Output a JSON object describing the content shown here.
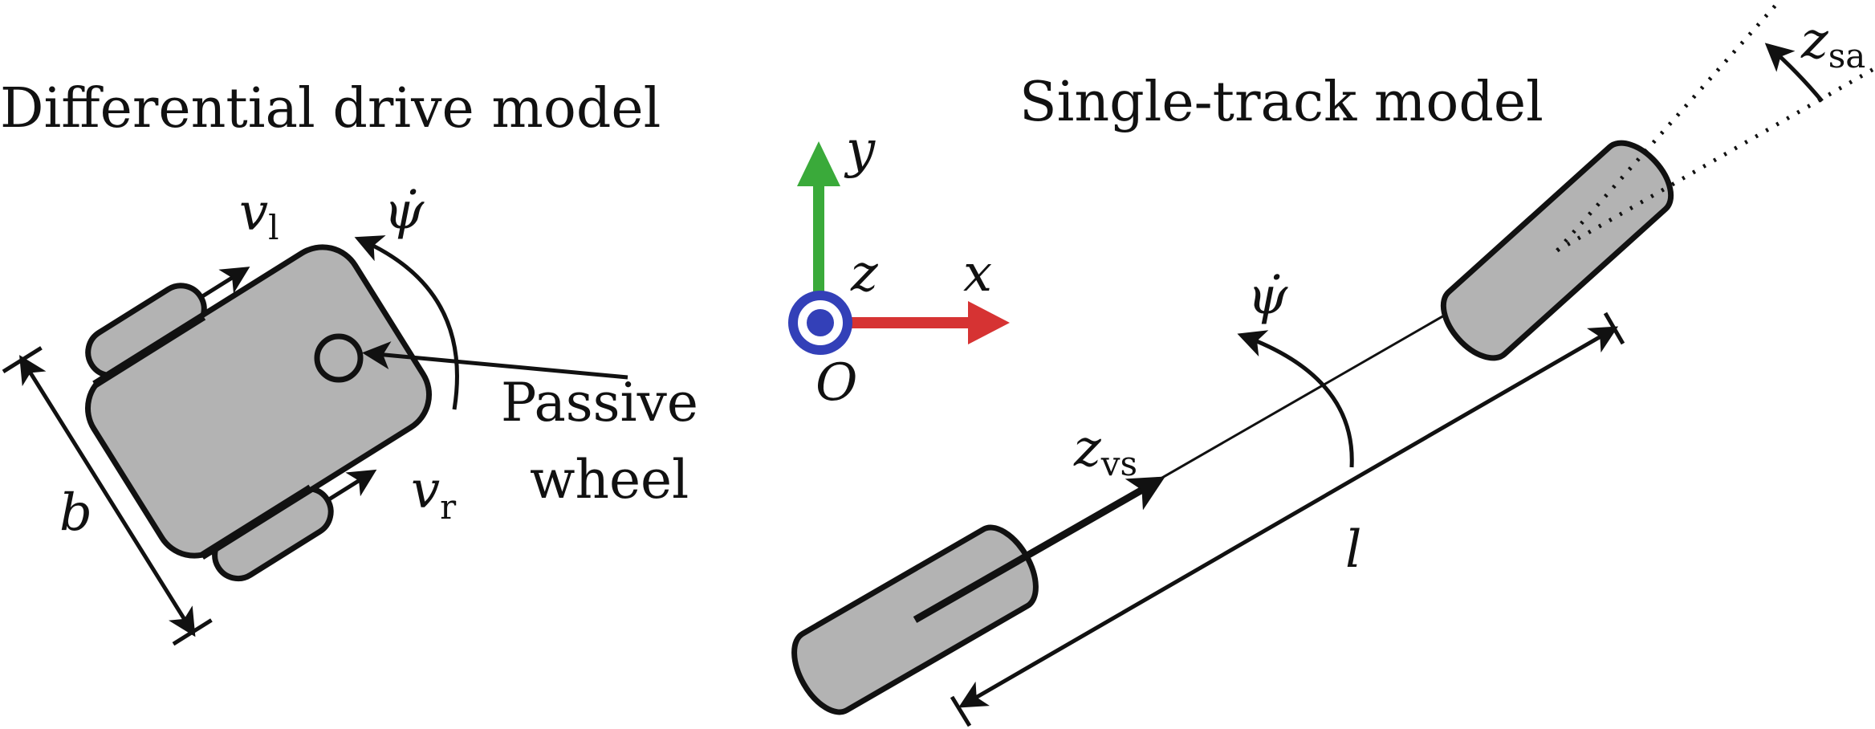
{
  "left_panel": {
    "title": "Differential drive model",
    "v_left": "v",
    "v_left_sub": "l",
    "v_right": "v",
    "v_right_sub": "r",
    "yaw_rate": "ψ̇",
    "width_label": "b",
    "passive_wheel_line1": "Passive",
    "passive_wheel_line2": "wheel"
  },
  "axes": {
    "x": "x",
    "y": "y",
    "z": "z",
    "origin": "O",
    "x_color": "#d63333",
    "y_color": "#3aaa3a",
    "z_color": "#3340b8"
  },
  "right_panel": {
    "title": "Single-track model",
    "yaw_rate": "ψ̇",
    "velocity": "z",
    "velocity_sub": "vs",
    "steering_angle": "z",
    "steering_angle_sub": "sa",
    "length_label": "l"
  },
  "colors": {
    "wheel_fill": "#b3b3b3",
    "stroke": "#111111"
  }
}
